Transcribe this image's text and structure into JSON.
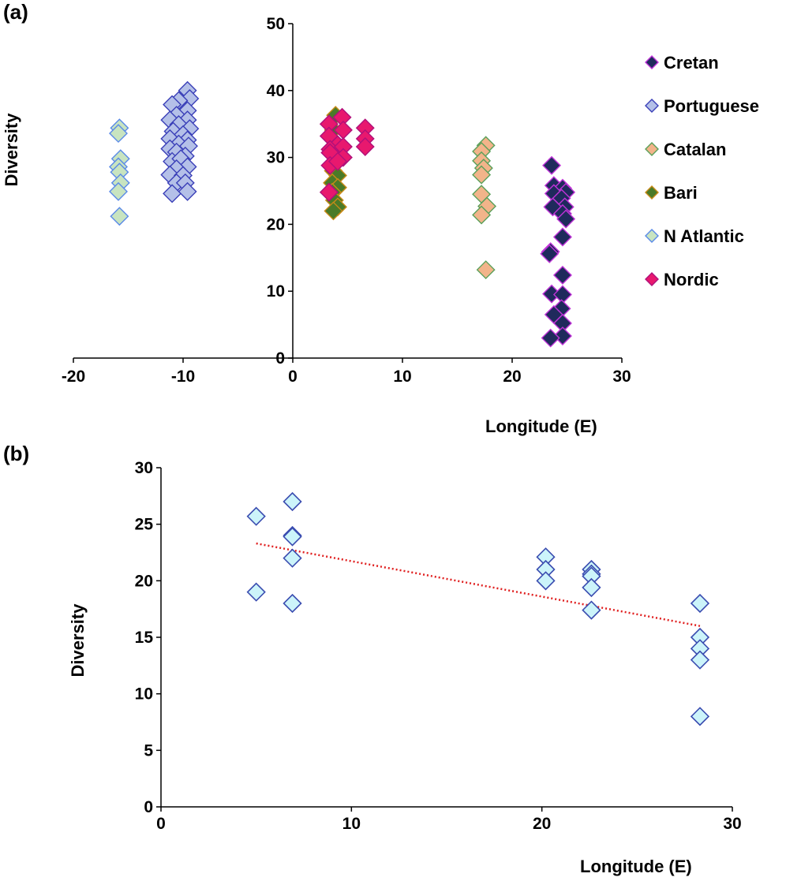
{
  "chart_data": [
    {
      "panel": "(a)",
      "type": "scatter",
      "xlabel": "Longitude (E)",
      "ylabel": "Diversity",
      "xlim": [
        -20,
        30
      ],
      "ylim": [
        0,
        50
      ],
      "xticks": [
        -20,
        -10,
        0,
        10,
        20,
        30
      ],
      "yticks": [
        0,
        10,
        20,
        30,
        40,
        50
      ],
      "grid": false,
      "legend": "right",
      "marker": "diamond",
      "series": [
        {
          "name": "Cretan",
          "fill": "#1f2a5c",
          "stroke": "#c033d8",
          "points": [
            [
              23.6,
              28.8
            ],
            [
              23.8,
              25.8
            ],
            [
              24.6,
              25.4
            ],
            [
              24.9,
              24.8
            ],
            [
              23.8,
              24.6
            ],
            [
              24.5,
              23.9
            ],
            [
              24.8,
              22.6
            ],
            [
              23.7,
              22.6
            ],
            [
              24.6,
              21.6
            ],
            [
              24.9,
              20.8
            ],
            [
              24.6,
              18.1
            ],
            [
              23.5,
              15.9
            ],
            [
              23.4,
              15.6
            ],
            [
              24.6,
              12.4
            ],
            [
              23.6,
              9.6
            ],
            [
              24.6,
              9.5
            ],
            [
              24.5,
              7.4
            ],
            [
              23.8,
              6.5
            ],
            [
              24.6,
              5.2
            ],
            [
              24.6,
              3.3
            ],
            [
              23.5,
              3.0
            ]
          ]
        },
        {
          "name": "Portuguese",
          "fill": "#b4c0e8",
          "stroke": "#3a3fb8",
          "points": [
            [
              -9.6,
              40.0
            ],
            [
              -9.4,
              38.8
            ],
            [
              -10.4,
              38.5
            ],
            [
              -11.0,
              37.9
            ],
            [
              -9.6,
              37.0
            ],
            [
              -10.6,
              36.3
            ],
            [
              -11.2,
              35.6
            ],
            [
              -9.6,
              35.6
            ],
            [
              -10.4,
              34.9
            ],
            [
              -9.4,
              34.3
            ],
            [
              -10.9,
              33.9
            ],
            [
              -10.0,
              33.4
            ],
            [
              -11.2,
              32.8
            ],
            [
              -9.6,
              32.6
            ],
            [
              -10.4,
              32.0
            ],
            [
              -11.2,
              31.3
            ],
            [
              -9.5,
              31.7
            ],
            [
              -10.6,
              30.8
            ],
            [
              -9.8,
              30.2
            ],
            [
              -11.0,
              29.4
            ],
            [
              -10.2,
              29.8
            ],
            [
              -9.6,
              28.6
            ],
            [
              -10.6,
              28.3
            ],
            [
              -11.2,
              27.4
            ],
            [
              -10.0,
              27.3
            ],
            [
              -10.6,
              26.2
            ],
            [
              -9.8,
              26.2
            ],
            [
              -11.0,
              24.6
            ],
            [
              -9.6,
              24.9
            ]
          ]
        },
        {
          "name": "Catalan",
          "fill": "#f2b48a",
          "stroke": "#5aa05a",
          "points": [
            [
              17.6,
              31.8
            ],
            [
              17.2,
              30.9
            ],
            [
              17.2,
              29.5
            ],
            [
              17.4,
              28.4
            ],
            [
              17.2,
              27.4
            ],
            [
              17.2,
              24.5
            ],
            [
              17.7,
              22.7
            ],
            [
              17.2,
              21.4
            ],
            [
              17.6,
              13.2
            ]
          ]
        },
        {
          "name": "Bari",
          "fill": "#4a7a28",
          "stroke": "#c88a18",
          "points": [
            [
              3.9,
              36.3
            ],
            [
              3.7,
              34.1
            ],
            [
              3.9,
              30.5
            ],
            [
              3.7,
              28.0
            ],
            [
              4.1,
              27.3
            ],
            [
              3.6,
              26.2
            ],
            [
              4.1,
              25.5
            ],
            [
              3.6,
              24.8
            ],
            [
              3.8,
              23.6
            ],
            [
              4.1,
              22.6
            ],
            [
              3.7,
              22.0
            ]
          ]
        },
        {
          "name": "N Atlantic",
          "fill": "#c8e4c0",
          "stroke": "#5a8ae8",
          "points": [
            [
              -15.8,
              34.4
            ],
            [
              -15.9,
              33.6
            ],
            [
              -15.7,
              29.8
            ],
            [
              -15.9,
              28.6
            ],
            [
              -15.8,
              27.8
            ],
            [
              -15.7,
              26.2
            ],
            [
              -15.9,
              24.9
            ],
            [
              -15.8,
              21.2
            ]
          ]
        },
        {
          "name": "Nordic",
          "fill": "#e8186e",
          "stroke": "#b0107a",
          "points": [
            [
              3.3,
              35.0
            ],
            [
              4.5,
              36.0
            ],
            [
              6.6,
              34.4
            ],
            [
              3.3,
              33.2
            ],
            [
              4.6,
              34.1
            ],
            [
              4.1,
              31.9
            ],
            [
              6.6,
              32.8
            ],
            [
              3.4,
              31.2
            ],
            [
              4.6,
              31.6
            ],
            [
              6.6,
              31.6
            ],
            [
              3.4,
              30.7
            ],
            [
              4.6,
              30.0
            ],
            [
              3.4,
              28.8
            ],
            [
              4.1,
              29.4
            ],
            [
              3.3,
              24.8
            ]
          ]
        }
      ]
    },
    {
      "panel": "(b)",
      "type": "scatter",
      "xlabel": "Longitude (E)",
      "ylabel": "Diversity",
      "xlim": [
        0,
        30
      ],
      "ylim": [
        0,
        30
      ],
      "xticks": [
        0,
        10,
        20,
        30
      ],
      "yticks": [
        0,
        5,
        10,
        15,
        20,
        25,
        30
      ],
      "grid": false,
      "marker": "diamond",
      "trendline": {
        "style": "dotted",
        "color": "#e02020",
        "x": [
          5,
          28.3
        ],
        "y": [
          23.3,
          16.0
        ]
      },
      "series": [
        {
          "fill": "#ccf4fa",
          "stroke": "#3a4cb0",
          "points": [
            [
              5.0,
              25.7
            ],
            [
              5.0,
              19.0
            ],
            [
              6.9,
              27.0
            ],
            [
              6.9,
              24.0
            ],
            [
              6.9,
              23.9
            ],
            [
              6.9,
              22.0
            ],
            [
              6.9,
              18.0
            ],
            [
              20.2,
              22.1
            ],
            [
              20.2,
              21.0
            ],
            [
              20.2,
              20.0
            ],
            [
              22.6,
              21.0
            ],
            [
              22.6,
              20.6
            ],
            [
              22.6,
              20.4
            ],
            [
              22.6,
              19.4
            ],
            [
              22.6,
              17.4
            ],
            [
              28.3,
              18.0
            ],
            [
              28.3,
              15.0
            ],
            [
              28.3,
              14.0
            ],
            [
              28.3,
              13.0
            ],
            [
              28.3,
              8.0
            ]
          ]
        }
      ]
    }
  ]
}
